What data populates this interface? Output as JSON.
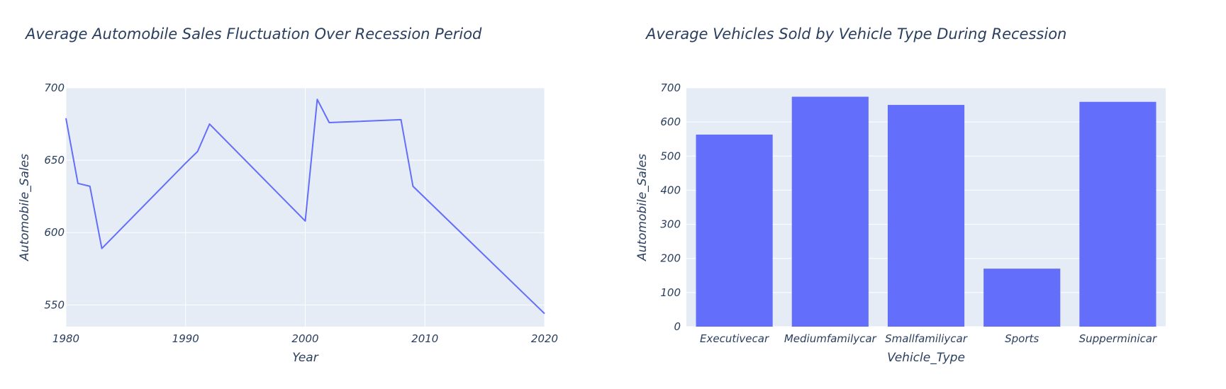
{
  "chart_data": [
    {
      "type": "line",
      "title": "Average Automobile Sales Fluctuation Over Recession Period",
      "xlabel": "Year",
      "ylabel": "Automobile_Sales",
      "xlim": [
        1980,
        2020
      ],
      "ylim": [
        535,
        700
      ],
      "x_ticks": [
        "1980",
        "1990",
        "2000",
        "2010",
        "2020"
      ],
      "y_ticks": [
        "550",
        "600",
        "650",
        "700"
      ],
      "grid": true,
      "series_color": "#636efa",
      "plot_bg": "#e5ecf6",
      "x": [
        1980,
        1981,
        1982,
        1983,
        1990,
        1991,
        1992,
        2000,
        2001,
        2002,
        2008,
        2009,
        2020
      ],
      "y": [
        679,
        634,
        632,
        589,
        648,
        656,
        675,
        608,
        692,
        676,
        678,
        632,
        544
      ]
    },
    {
      "type": "bar",
      "title": "Average Vehicles Sold by Vehicle Type During Recession",
      "xlabel": "Vehicle_Type",
      "ylabel": "Automobile_Sales",
      "ylim": [
        0,
        700
      ],
      "y_ticks": [
        "0",
        "100",
        "200",
        "300",
        "400",
        "500",
        "600",
        "700"
      ],
      "grid": true,
      "series_color": "#636efa",
      "plot_bg": "#e5ecf6",
      "categories": [
        "Executivecar",
        "Mediumfamilycar",
        "Smallfamiliycar",
        "Sports",
        "Supperminicar"
      ],
      "values": [
        563,
        674,
        650,
        170,
        659
      ]
    }
  ]
}
